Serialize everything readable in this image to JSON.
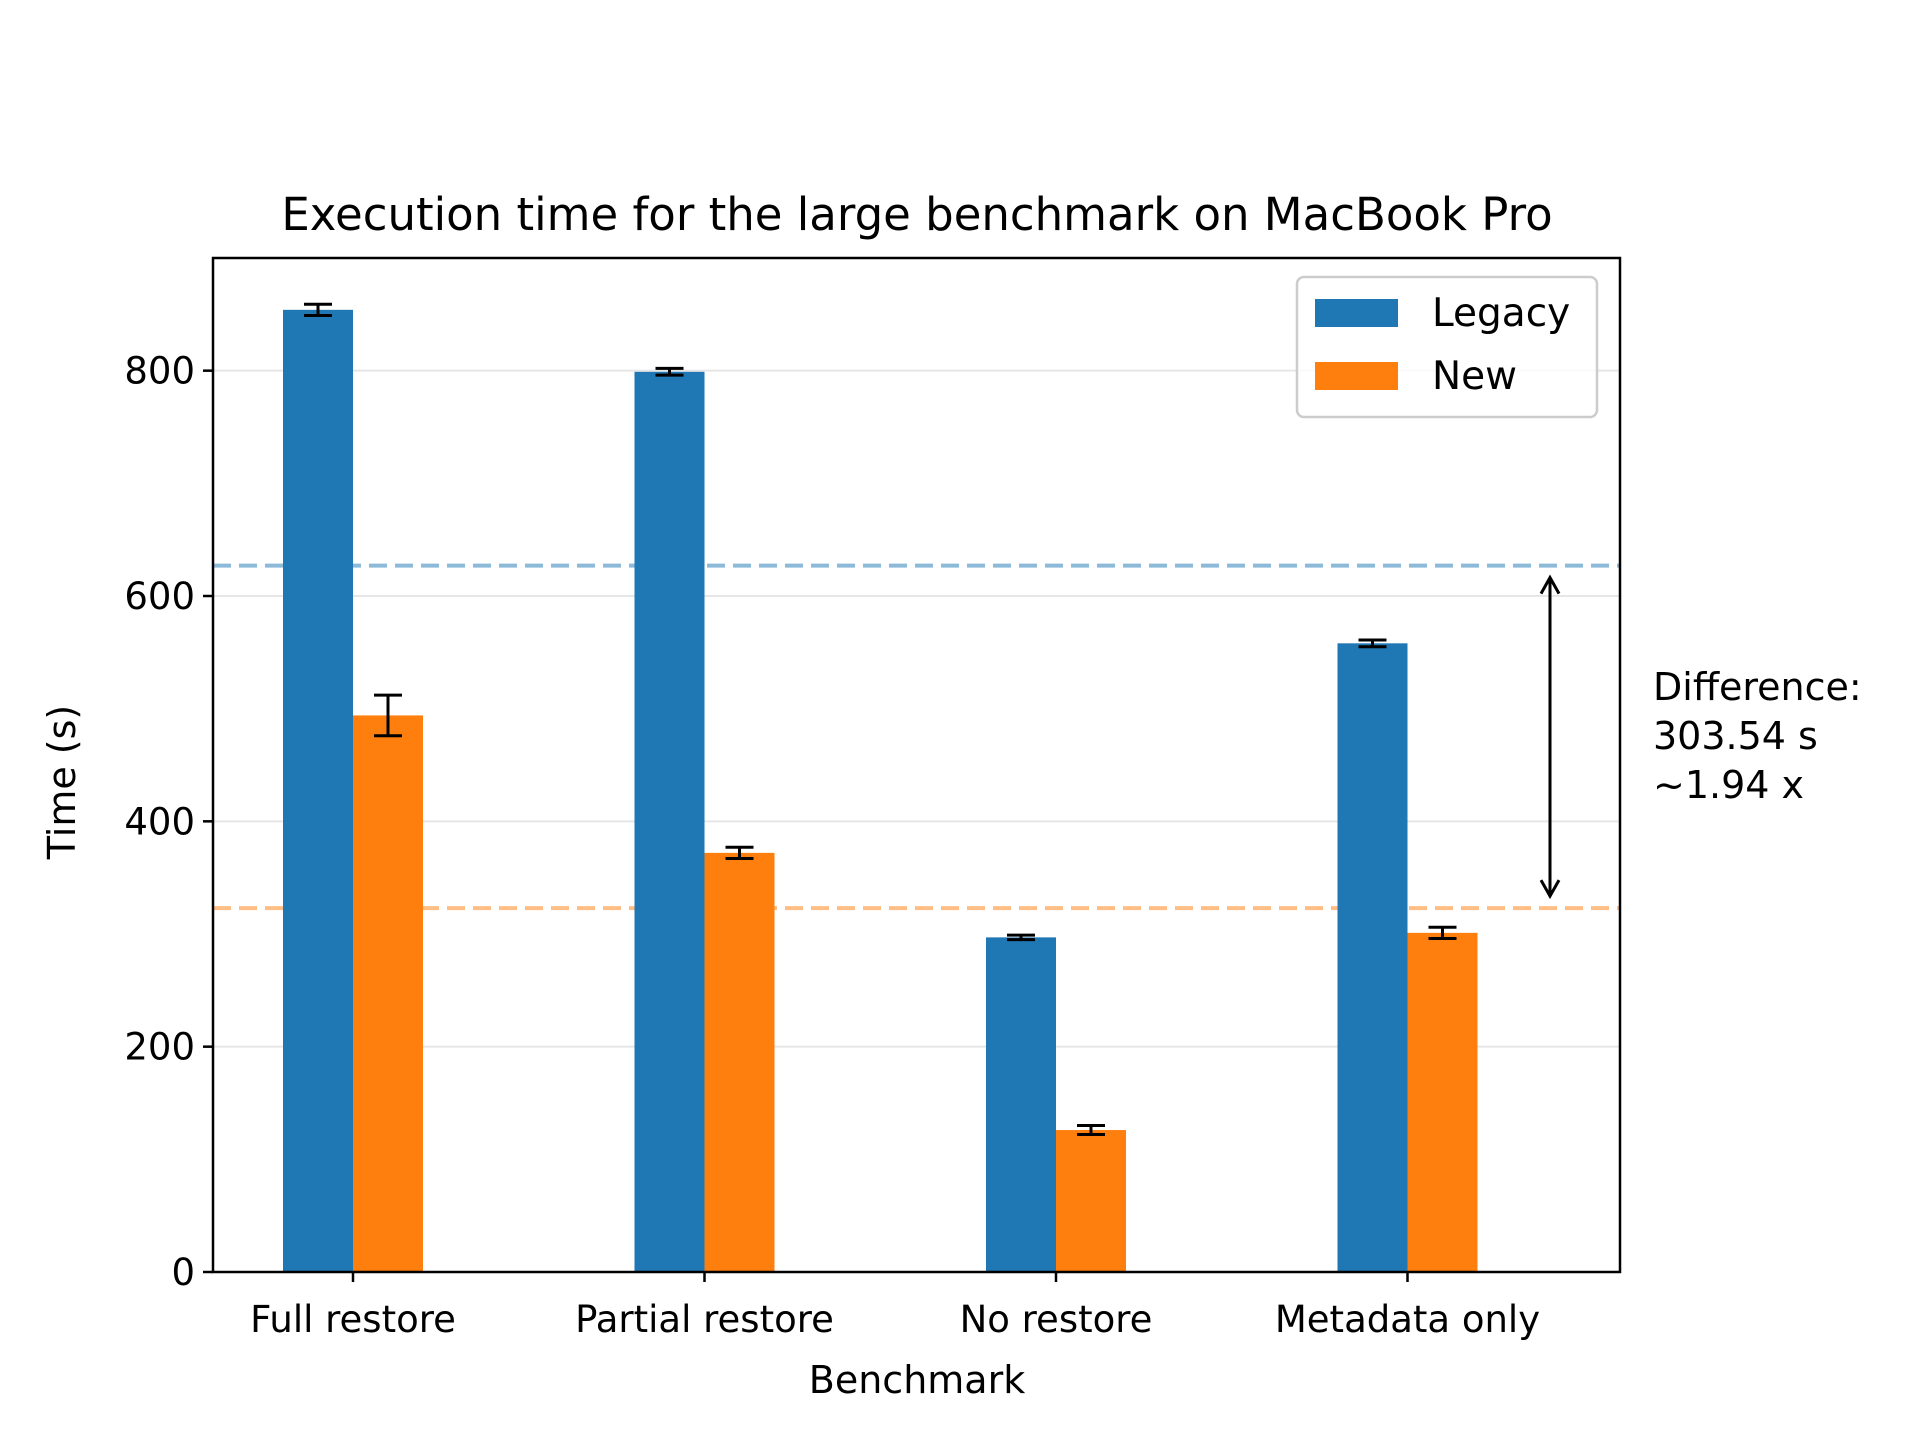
{
  "chart_data": {
    "type": "bar",
    "title": "Execution time for the large benchmark on MacBook Pro",
    "xlabel": "Benchmark",
    "ylabel": "Time (s)",
    "categories": [
      "Full restore",
      "Partial restore",
      "No restore",
      "Metadata only"
    ],
    "series": [
      {
        "name": "Legacy",
        "color": "#1f77b4",
        "values": [
          854,
          799,
          297,
          558
        ],
        "errors": [
          5,
          3,
          2,
          3
        ]
      },
      {
        "name": "New",
        "color": "#ff7f0e",
        "values": [
          494,
          372,
          126,
          301
        ],
        "errors": [
          18,
          5,
          4,
          5
        ]
      }
    ],
    "ylim": [
      0,
      900
    ],
    "yticks": [
      0,
      200,
      400,
      600,
      800
    ],
    "ytick_labels": [
      "0",
      "200",
      "400",
      "600",
      "800"
    ],
    "grid": "horizontal",
    "legend_position": "top-right",
    "reference_lines": [
      {
        "value": 627,
        "color": "#1f77b4",
        "style": "dashed"
      },
      {
        "value": 323,
        "color": "#ff7f0e",
        "style": "dashed"
      }
    ],
    "annotation": {
      "lines": [
        "Difference:",
        "303.54 s",
        "~1.94 x"
      ]
    }
  }
}
